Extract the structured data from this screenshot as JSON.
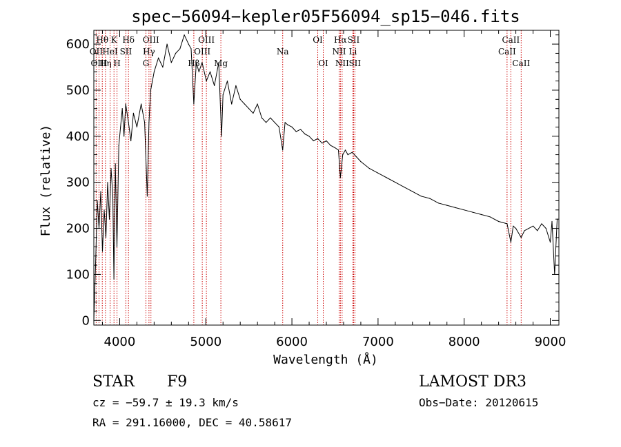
{
  "chart_data": {
    "type": "line",
    "title": "spec−56094−kepler05F56094_sp15−046.fits",
    "xlabel": "Wavelength (Å)",
    "ylabel": "Flux (relative)",
    "xlim": [
      3700,
      9100
    ],
    "ylim": [
      -10,
      630
    ],
    "xticks": [
      4000,
      5000,
      6000,
      7000,
      8000,
      9000
    ],
    "yticks": [
      0,
      100,
      200,
      300,
      400,
      500,
      600
    ],
    "series": [
      {
        "name": "flux",
        "x": [
          3700,
          3720,
          3740,
          3760,
          3780,
          3800,
          3820,
          3840,
          3860,
          3880,
          3900,
          3920,
          3933,
          3950,
          3968,
          3990,
          4010,
          4030,
          4050,
          4070,
          4102,
          4130,
          4160,
          4200,
          4250,
          4290,
          4305,
          4320,
          4340,
          4360,
          4380,
          4400,
          4450,
          4500,
          4550,
          4600,
          4650,
          4700,
          4750,
          4800,
          4830,
          4861,
          4890,
          4920,
          4957,
          5007,
          5050,
          5100,
          5150,
          5183,
          5200,
          5250,
          5300,
          5350,
          5400,
          5450,
          5500,
          5550,
          5600,
          5650,
          5700,
          5750,
          5800,
          5850,
          5893,
          5920,
          5950,
          6000,
          6050,
          6100,
          6150,
          6200,
          6250,
          6300,
          6350,
          6400,
          6450,
          6500,
          6540,
          6563,
          6590,
          6620,
          6650,
          6700,
          6750,
          6800,
          6900,
          7000,
          7100,
          7200,
          7300,
          7400,
          7500,
          7600,
          7700,
          7800,
          7900,
          8000,
          8100,
          8200,
          8300,
          8400,
          8498,
          8542,
          8570,
          8600,
          8662,
          8700,
          8750,
          8800,
          8850,
          8900,
          8950,
          9000,
          9020,
          9050,
          9080
        ],
        "y": [
          0,
          120,
          260,
          200,
          280,
          150,
          240,
          180,
          300,
          220,
          330,
          270,
          90,
          340,
          160,
          380,
          420,
          460,
          400,
          470,
          430,
          390,
          450,
          420,
          470,
          430,
          350,
          270,
          430,
          500,
          520,
          540,
          570,
          550,
          600,
          560,
          580,
          590,
          620,
          600,
          590,
          470,
          560,
          540,
          560,
          520,
          540,
          510,
          560,
          400,
          490,
          520,
          470,
          510,
          480,
          470,
          460,
          450,
          470,
          440,
          430,
          440,
          430,
          420,
          370,
          430,
          425,
          420,
          410,
          415,
          405,
          400,
          390,
          395,
          385,
          390,
          380,
          375,
          370,
          310,
          360,
          370,
          360,
          365,
          355,
          345,
          330,
          320,
          310,
          300,
          290,
          280,
          270,
          265,
          255,
          250,
          245,
          240,
          235,
          230,
          225,
          215,
          210,
          170,
          205,
          200,
          180,
          195,
          200,
          205,
          195,
          210,
          200,
          170,
          215,
          100,
          220
        ]
      }
    ],
    "line_markers": [
      {
        "label": "Hθ",
        "wavelength": 3798,
        "row": 0
      },
      {
        "label": "Hη",
        "wavelength": 3835,
        "row": 2
      },
      {
        "label": "OII",
        "wavelength": 3727,
        "row": 1
      },
      {
        "label": "OIII",
        "wavelength": 3760,
        "row": 2
      },
      {
        "label": "K",
        "wavelength": 3934,
        "row": 0
      },
      {
        "label": "HeI",
        "wavelength": 3889,
        "row": 1
      },
      {
        "label": "H",
        "wavelength": 3969,
        "row": 2
      },
      {
        "label": "Hδ",
        "wavelength": 4102,
        "row": 0
      },
      {
        "label": "SII",
        "wavelength": 4072,
        "row": 1
      },
      {
        "label": "OIII",
        "wavelength": 4363,
        "row": 0
      },
      {
        "label": "Hγ",
        "wavelength": 4340,
        "row": 1
      },
      {
        "label": "G",
        "wavelength": 4305,
        "row": 2
      },
      {
        "label": "OIII",
        "wavelength": 5007,
        "row": 0
      },
      {
        "label": "OIII",
        "wavelength": 4959,
        "row": 1
      },
      {
        "label": "Hβ",
        "wavelength": 4861,
        "row": 2
      },
      {
        "label": "Mg",
        "wavelength": 5175,
        "row": 2
      },
      {
        "label": "Na",
        "wavelength": 5893,
        "row": 1
      },
      {
        "label": "OI",
        "wavelength": 6300,
        "row": 0
      },
      {
        "label": "OI",
        "wavelength": 6364,
        "row": 2
      },
      {
        "label": "Hα",
        "wavelength": 6563,
        "row": 0
      },
      {
        "label": "SII",
        "wavelength": 6716,
        "row": 0
      },
      {
        "label": "NII",
        "wavelength": 6548,
        "row": 1
      },
      {
        "label": "Li",
        "wavelength": 6708,
        "row": 1
      },
      {
        "label": "NII",
        "wavelength": 6583,
        "row": 2
      },
      {
        "label": "SII",
        "wavelength": 6731,
        "row": 2
      },
      {
        "label": "CaII",
        "wavelength": 8542,
        "row": 0
      },
      {
        "label": "CaII",
        "wavelength": 8498,
        "row": 1
      },
      {
        "label": "CaII",
        "wavelength": 8662,
        "row": 2
      }
    ],
    "line_marker_color": "#cc0000"
  },
  "info": {
    "class": "STAR",
    "subclass": "F9",
    "survey": "LAMOST DR3",
    "redshift": "cz = −59.7 ± 19.3 km/s",
    "obs_date": "Obs−Date: 20120615",
    "coords": "RA = 291.16000, DEC =  40.58617"
  }
}
